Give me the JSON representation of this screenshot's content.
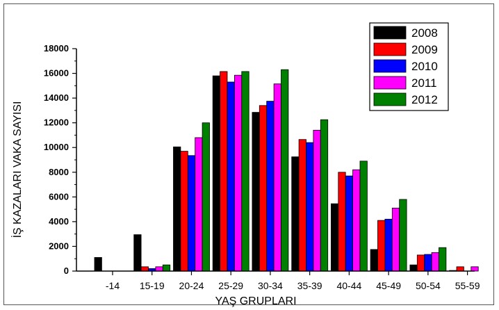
{
  "chart_data": {
    "type": "bar",
    "title": "",
    "xlabel": "YAŞ GRUPLARI",
    "ylabel": "İŞ KAZALARI VAKA SAYISI",
    "ylim": [
      0,
      18000
    ],
    "yticks": [
      "0",
      "2000",
      "4000",
      "6000",
      "8000",
      "10000",
      "12000",
      "14000",
      "16000",
      "18000"
    ],
    "categories": [
      "-14",
      "15-19",
      "20-24",
      "25-29",
      "30-34",
      "35-39",
      "40-44",
      "45-49",
      "50-54",
      "55-59"
    ],
    "legend_position": "top-right",
    "grid": false,
    "series": [
      {
        "name": "2008",
        "color": "#000000",
        "values": [
          1100,
          2950,
          10050,
          15800,
          12850,
          9250,
          5450,
          1750,
          500,
          50
        ]
      },
      {
        "name": "2009",
        "color": "#ff0000",
        "values": [
          0,
          350,
          9700,
          16150,
          13400,
          10650,
          8000,
          4100,
          1300,
          350
        ]
      },
      {
        "name": "2010",
        "color": "#0000ff",
        "values": [
          0,
          200,
          9350,
          15300,
          13750,
          10400,
          7700,
          4200,
          1350,
          0
        ]
      },
      {
        "name": "2011",
        "color": "#ff00ff",
        "values": [
          0,
          350,
          10800,
          15850,
          15150,
          11400,
          8200,
          5100,
          1500,
          350
        ]
      },
      {
        "name": "2012",
        "color": "#008000",
        "values": [
          0,
          500,
          12000,
          16150,
          16300,
          12250,
          8900,
          5800,
          1900,
          0
        ]
      }
    ]
  }
}
